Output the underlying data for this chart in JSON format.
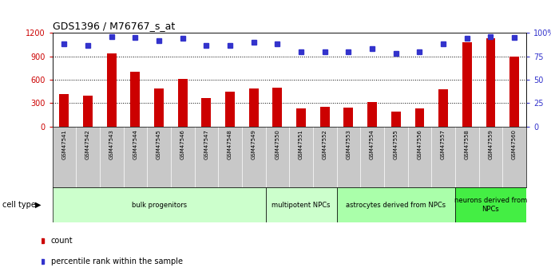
{
  "title": "GDS1396 / M76767_s_at",
  "samples": [
    "GSM47541",
    "GSM47542",
    "GSM47543",
    "GSM47544",
    "GSM47545",
    "GSM47546",
    "GSM47547",
    "GSM47548",
    "GSM47549",
    "GSM47550",
    "GSM47551",
    "GSM47552",
    "GSM47553",
    "GSM47554",
    "GSM47555",
    "GSM47556",
    "GSM47557",
    "GSM47558",
    "GSM47559",
    "GSM47560"
  ],
  "counts": [
    420,
    400,
    940,
    700,
    490,
    610,
    370,
    450,
    490,
    500,
    230,
    250,
    240,
    310,
    190,
    230,
    480,
    1080,
    1130,
    900
  ],
  "percentiles": [
    88,
    87,
    96,
    95,
    92,
    94,
    87,
    87,
    90,
    88,
    80,
    80,
    80,
    83,
    78,
    80,
    88,
    94,
    96,
    95
  ],
  "bar_color": "#cc0000",
  "dot_color": "#3333cc",
  "ylim_left": [
    0,
    1200
  ],
  "ylim_right": [
    0,
    100
  ],
  "yticks_left": [
    0,
    300,
    600,
    900,
    1200
  ],
  "yticks_right": [
    0,
    25,
    50,
    75,
    100
  ],
  "ytick_labels_right": [
    "0",
    "25",
    "50",
    "75",
    "100%"
  ],
  "cell_type_groups": [
    {
      "label": "bulk progenitors",
      "start": 0,
      "end": 9,
      "color": "#ccffcc"
    },
    {
      "label": "multipotent NPCs",
      "start": 9,
      "end": 12,
      "color": "#ccffcc"
    },
    {
      "label": "astrocytes derived from NPCs",
      "start": 12,
      "end": 17,
      "color": "#aaffaa"
    },
    {
      "label": "neurons derived from\nNPCs",
      "start": 17,
      "end": 20,
      "color": "#44ee44"
    }
  ],
  "cell_type_label": "cell type",
  "legend_count_label": "count",
  "legend_pct_label": "percentile rank within the sample",
  "xtick_bg_color": "#c8c8c8",
  "plot_bg_color": "#ffffff",
  "left_tick_color": "#cc0000",
  "right_tick_color": "#3333cc"
}
